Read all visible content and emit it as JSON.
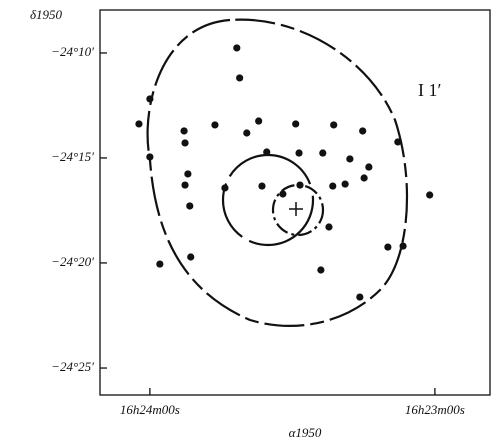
{
  "chart_data": {
    "type": "scatter",
    "annotation": "I 1′",
    "x_label": "α1950",
    "y_label": "δ1950",
    "xlim": [
      59050.5,
      58968.4
    ],
    "ylim": [
      -24.1326,
      -24.4381
    ],
    "xticks": [
      {
        "value": 59040,
        "label": "16h24m00s"
      },
      {
        "value": 58980,
        "label": "16h23m00s"
      }
    ],
    "yticks": [
      {
        "value": -24.1667,
        "label": "−24°10′"
      },
      {
        "value": -24.25,
        "label": "−24°15′"
      },
      {
        "value": -24.3333,
        "label": "−24°20′"
      },
      {
        "value": -24.4167,
        "label": "−24°25′"
      }
    ],
    "color": "#111111",
    "x": [
      59021.7,
      59021.1,
      59040.0,
      59042.3,
      59032.8,
      59026.3,
      59019.6,
      59017.1,
      59009.3,
      59001.3,
      58995.2,
      58987.8,
      59040.0,
      59032.6,
      59015.4,
      59008.6,
      59003.6,
      58997.9,
      58993.9,
      59032.0,
      59032.6,
      59024.2,
      59016.4,
      59012.0,
      59008.4,
      59001.5,
      58998.9,
      58994.9,
      58981.1,
      59031.6,
      59002.3,
      59031.4,
      59037.9,
      59004.0,
      58989.9,
      58986.7,
      58995.8
    ],
    "y": [
      -24.1627,
      -24.1865,
      -24.2032,
      -24.223,
      -24.2286,
      -24.2238,
      -24.2302,
      -24.2207,
      -24.223,
      -24.2238,
      -24.2286,
      -24.2373,
      -24.2492,
      -24.2381,
      -24.2453,
      -24.2461,
      -24.2461,
      -24.2508,
      -24.2572,
      -24.2627,
      -24.2715,
      -24.2738,
      -24.2723,
      -24.2786,
      -24.2715,
      -24.2723,
      -24.2707,
      -24.2659,
      -24.2794,
      -24.2881,
      -24.3048,
      -24.3286,
      -24.3342,
      -24.3389,
      -24.3207,
      -24.3199,
      -24.3604
    ]
  }
}
